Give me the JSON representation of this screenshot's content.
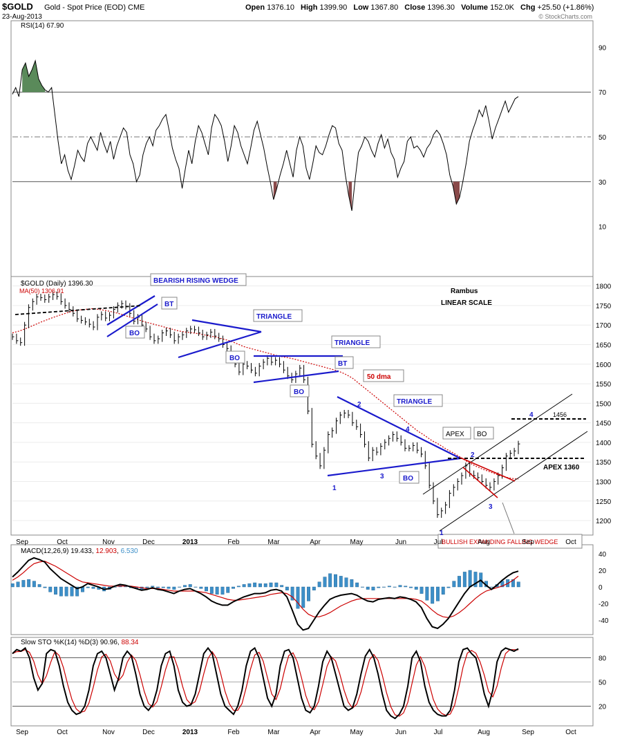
{
  "header": {
    "symbol": "$GOLD",
    "name": "Gold - Spot Price (EOD)",
    "exchange": "CME",
    "date": "23-Aug-2013",
    "open_label": "Open",
    "open": "1376.10",
    "high_label": "High",
    "high": "1399.90",
    "low_label": "Low",
    "low": "1367.80",
    "close_label": "Close",
    "close": "1396.30",
    "volume_label": "Volume",
    "volume": "152.0K",
    "chg_label": "Chg",
    "chg": "+25.50 (+1.86%)",
    "watermark": "© StockCharts.com"
  },
  "colors": {
    "price": "#000000",
    "ma50": "#cc0000",
    "trendline": "#1a1acc",
    "annotation_red": "#cc0000",
    "rsi_overbought_fill": "#5a8a5a",
    "rsi_oversold_fill": "#8a4a4a",
    "macd_hist": "#3d8fc8",
    "grid": "#c8c8c8"
  },
  "months": [
    "Sep",
    "Oct",
    "Nov",
    "Dec",
    "2013",
    "Feb",
    "Mar",
    "Apr",
    "May",
    "Jun",
    "Jul",
    "Aug",
    "Sep",
    "Oct"
  ],
  "chart_data": [
    {
      "type": "line",
      "panel": "rsi",
      "title": "RSI(14) 67.90",
      "y_ticks": [
        90,
        70,
        50,
        30,
        10
      ],
      "ylim": [
        0,
        100
      ],
      "reference_lines": [
        70,
        50,
        30
      ],
      "values": [
        69,
        72,
        68,
        80,
        83,
        77,
        80,
        84,
        76,
        73,
        71,
        70,
        72,
        60,
        48,
        38,
        42,
        35,
        31,
        37,
        44,
        41,
        39,
        47,
        50,
        47,
        44,
        52,
        47,
        43,
        48,
        40,
        46,
        50,
        54,
        52,
        42,
        38,
        30,
        33,
        42,
        47,
        50,
        46,
        53,
        55,
        58,
        60,
        53,
        45,
        40,
        36,
        27,
        36,
        44,
        38,
        48,
        55,
        52,
        47,
        42,
        54,
        60,
        58,
        55,
        48,
        39,
        46,
        55,
        52,
        46,
        42,
        38,
        45,
        53,
        57,
        51,
        45,
        37,
        30,
        22,
        27,
        33,
        38,
        44,
        38,
        32,
        44,
        50,
        46,
        36,
        31,
        38,
        46,
        43,
        42,
        46,
        51,
        55,
        54,
        47,
        44,
        33,
        24,
        17,
        31,
        43,
        46,
        50,
        48,
        44,
        41,
        47,
        51,
        45,
        49,
        43,
        40,
        32,
        36,
        39,
        48,
        50,
        45,
        46,
        44,
        41,
        45,
        47,
        51,
        53,
        51,
        47,
        42,
        33,
        28,
        20,
        23,
        30,
        38,
        48,
        53,
        57,
        62,
        59,
        64,
        57,
        49,
        54,
        58,
        62,
        66,
        61,
        64,
        67,
        68
      ]
    },
    {
      "type": "line",
      "panel": "price",
      "title": "$GOLD (Daily) 1396.30",
      "ma_label": "MA(50) 1306.91",
      "ylim": [
        1170,
        1810
      ],
      "y_ticks": [
        1800,
        1750,
        1700,
        1650,
        1600,
        1550,
        1500,
        1450,
        1400,
        1350,
        1300,
        1250,
        1200
      ],
      "close": [
        1670,
        1660,
        1655,
        1700,
        1745,
        1760,
        1772,
        1770,
        1765,
        1772,
        1778,
        1773,
        1760,
        1750,
        1740,
        1730,
        1716,
        1712,
        1708,
        1702,
        1695,
        1720,
        1727,
        1718,
        1725,
        1740,
        1750,
        1755,
        1748,
        1730,
        1710,
        1720,
        1700,
        1690,
        1670,
        1660,
        1665,
        1680,
        1685,
        1675,
        1660,
        1670,
        1675,
        1685,
        1690,
        1688,
        1680,
        1670,
        1675,
        1682,
        1672,
        1665,
        1650,
        1640,
        1620,
        1600,
        1580,
        1600,
        1595,
        1585,
        1577,
        1595,
        1605,
        1615,
        1605,
        1610,
        1600,
        1585,
        1570,
        1560,
        1575,
        1590,
        1560,
        1480,
        1395,
        1365,
        1340,
        1380,
        1420,
        1430,
        1455,
        1470,
        1475,
        1470,
        1450,
        1440,
        1420,
        1395,
        1360,
        1380,
        1375,
        1390,
        1400,
        1410,
        1420,
        1410,
        1400,
        1385,
        1385,
        1392,
        1380,
        1370,
        1340,
        1290,
        1250,
        1215,
        1225,
        1240,
        1270,
        1285,
        1300,
        1315,
        1340,
        1320,
        1315,
        1310,
        1300,
        1290,
        1285,
        1300,
        1315,
        1335,
        1365,
        1372,
        1378,
        1396
      ],
      "ma50": [
        1680,
        1685,
        1692,
        1700,
        1708,
        1715,
        1722,
        1728,
        1734,
        1738,
        1740,
        1742,
        1740,
        1737,
        1733,
        1728,
        1722,
        1716,
        1710,
        1705,
        1700,
        1695,
        1690,
        1685,
        1682,
        1680,
        1677,
        1673,
        1670,
        1665,
        1660,
        1653,
        1645,
        1640,
        1635,
        1630,
        1625,
        1620,
        1617,
        1613,
        1608,
        1603,
        1598,
        1593,
        1588,
        1583,
        1575,
        1565,
        1550,
        1535,
        1520,
        1505,
        1490,
        1475,
        1460,
        1445,
        1430,
        1418,
        1405,
        1395,
        1383,
        1373,
        1362,
        1350,
        1340,
        1332,
        1325,
        1318,
        1312,
        1308,
        1306
      ],
      "annotations": {
        "bearish_rising_wedge": "BEARISH RISING WEDGE",
        "bt1": "BT",
        "bo1": "BO",
        "triangle1": "TRIANGLE",
        "bo2": "BO",
        "triangle2": "TRIANGLE",
        "bt2": "BT",
        "bo3": "BO",
        "dma50": "50 dma",
        "triangle3": "TRIANGLE",
        "apex": "APEX",
        "bo4": "BO",
        "bo5": "BO",
        "apex_1360": "APEX 1360",
        "target": "1456",
        "wedge": "BULLISH EXPANDING FALLING WEDGE",
        "rambus": "Rambus",
        "linear": "LINEAR SCALE",
        "n1a": "1",
        "n2a": "2",
        "n3a": "3",
        "n4a": "4",
        "n1b": "1",
        "n2b": "2",
        "n3b": "3",
        "n4b": "4"
      }
    },
    {
      "type": "line",
      "panel": "macd",
      "title_a": "MACD(12,26,9)",
      "val_a": "19.433",
      "val_b": "12.903",
      "val_c": "6.530",
      "ylim": [
        -55,
        45
      ],
      "y_ticks": [
        40,
        20,
        0,
        -20,
        -40
      ],
      "macd": [
        12,
        18,
        25,
        32,
        35,
        33,
        30,
        22,
        16,
        10,
        6,
        2,
        -2,
        0,
        4,
        2,
        0,
        -3,
        -2,
        1,
        3,
        2,
        0,
        -2,
        -4,
        -3,
        -1,
        -3,
        -4,
        -6,
        -8,
        -5,
        -3,
        -2,
        -5,
        -8,
        -12,
        -17,
        -20,
        -22,
        -22,
        -18,
        -15,
        -12,
        -10,
        -8,
        -8,
        -7,
        -4,
        -3,
        -5,
        -12,
        -28,
        -45,
        -52,
        -50,
        -40,
        -30,
        -22,
        -15,
        -12,
        -10,
        -9,
        -8,
        -10,
        -14,
        -17,
        -18,
        -15,
        -14,
        -13,
        -14,
        -12,
        -13,
        -15,
        -18,
        -25,
        -38,
        -48,
        -50,
        -45,
        -38,
        -28,
        -18,
        -8,
        0,
        4,
        8,
        2,
        -3,
        2,
        8,
        13,
        17,
        19
      ],
      "signal": [
        8,
        12,
        17,
        23,
        28,
        30,
        31,
        28,
        25,
        21,
        17,
        13,
        9,
        6,
        5,
        4,
        3,
        2,
        1,
        1,
        1,
        1,
        1,
        0,
        -1,
        -2,
        -2,
        -2,
        -3,
        -4,
        -5,
        -5,
        -5,
        -5,
        -5,
        -6,
        -7,
        -9,
        -11,
        -13,
        -15,
        -16,
        -16,
        -15,
        -14,
        -13,
        -12,
        -11,
        -9,
        -8,
        -7,
        -8,
        -12,
        -19,
        -27,
        -33,
        -36,
        -36,
        -34,
        -31,
        -27,
        -23,
        -20,
        -17,
        -15,
        -14,
        -14,
        -14,
        -14,
        -14,
        -14,
        -14,
        -14,
        -14,
        -14,
        -15,
        -17,
        -22,
        -28,
        -33,
        -36,
        -37,
        -35,
        -31,
        -26,
        -20,
        -14,
        -9,
        -5,
        -3,
        -1,
        1,
        4,
        8,
        13
      ]
    },
    {
      "type": "line",
      "panel": "sto",
      "title_a": "Slow STO %K(14) %D(3)",
      "val_a": "90.96",
      "val_b": "88.34",
      "ylim": [
        0,
        100
      ],
      "y_ticks": [
        80,
        50,
        20
      ],
      "k": [
        85,
        90,
        88,
        92,
        80,
        55,
        40,
        48,
        85,
        90,
        88,
        70,
        45,
        25,
        15,
        10,
        12,
        20,
        40,
        70,
        85,
        88,
        80,
        60,
        40,
        55,
        80,
        88,
        82,
        60,
        35,
        20,
        15,
        22,
        40,
        70,
        85,
        88,
        70,
        40,
        25,
        20,
        22,
        35,
        60,
        85,
        92,
        85,
        60,
        35,
        20,
        15,
        10,
        20,
        40,
        70,
        88,
        92,
        80,
        55,
        30,
        20,
        35,
        70,
        88,
        90,
        80,
        55,
        30,
        15,
        12,
        20,
        45,
        75,
        88,
        80,
        60,
        40,
        20,
        15,
        18,
        35,
        60,
        82,
        90,
        80,
        60,
        35,
        15,
        8,
        5,
        10,
        20,
        45,
        80,
        88,
        75,
        45,
        25,
        15,
        10,
        8,
        8,
        15,
        40,
        75,
        90,
        92,
        85,
        80,
        60,
        35,
        20,
        40,
        75,
        88,
        92,
        90,
        88,
        91
      ]
    }
  ],
  "x_axis": {
    "bottom_labels": [
      "Sep",
      "Oct",
      "Nov",
      "Dec",
      "2013",
      "Feb",
      "Mar",
      "Apr",
      "May",
      "Jun",
      "Jul",
      "Aug",
      "Sep",
      "Oct"
    ]
  }
}
